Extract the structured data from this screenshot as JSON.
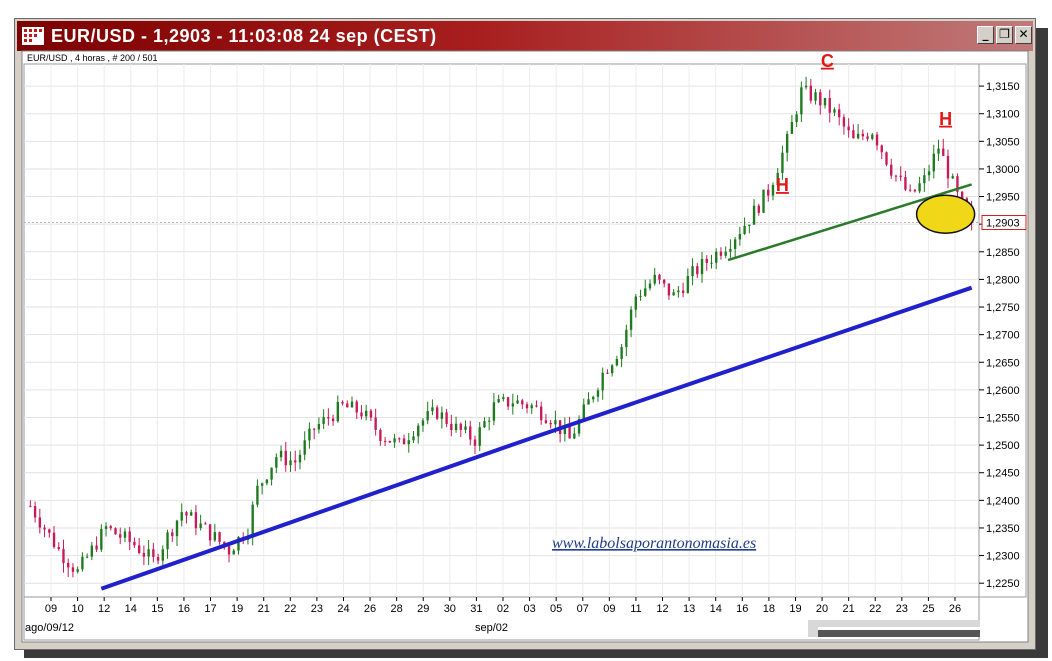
{
  "window": {
    "title": "EUR/USD - 1,2903 - 11:03:08  24 sep (CEST)",
    "buttons": [
      "_",
      "❐",
      "✕"
    ]
  },
  "chart_data": {
    "type": "candlestick",
    "title": "EUR/USD , 4 horas , # 200 / 501",
    "last_price_label": "1,2903",
    "y_ticks": [
      "1,3150",
      "1,3100",
      "1,3050",
      "1,3000",
      "1,2950",
      "1,2900",
      "1,2850",
      "1,2800",
      "1,2750",
      "1,2700",
      "1,2650",
      "1,2600",
      "1,2550",
      "1,2500",
      "1,2450",
      "1,2400",
      "1,2350",
      "1,2300",
      "1,2250"
    ],
    "ylim": [
      1.2225,
      1.319
    ],
    "x_ticks": [
      "09",
      "10",
      "12",
      "14",
      "15",
      "16",
      "17",
      "19",
      "21",
      "22",
      "23",
      "24",
      "26",
      "28",
      "29",
      "30",
      "31",
      "02",
      "03",
      "05",
      "07",
      "09",
      "11",
      "12",
      "13",
      "14",
      "16",
      "18",
      "19",
      "20",
      "21",
      "22",
      "23",
      "25",
      "26"
    ],
    "x_month_labels": [
      "ago/09/12",
      "sep/02"
    ],
    "up_color": "#1e7a1e",
    "down_color": "#c8195a",
    "anchors": [
      [
        0,
        1.239
      ],
      [
        6,
        1.231
      ],
      [
        10,
        1.227
      ],
      [
        16,
        1.235
      ],
      [
        22,
        1.232
      ],
      [
        26,
        1.229
      ],
      [
        32,
        1.238
      ],
      [
        38,
        1.234
      ],
      [
        42,
        1.231
      ],
      [
        46,
        1.235
      ],
      [
        48,
        1.242
      ],
      [
        52,
        1.248
      ],
      [
        56,
        1.247
      ],
      [
        60,
        1.253
      ],
      [
        66,
        1.257
      ],
      [
        70,
        1.256
      ],
      [
        74,
        1.252
      ],
      [
        78,
        1.25
      ],
      [
        82,
        1.254
      ],
      [
        86,
        1.256
      ],
      [
        90,
        1.253
      ],
      [
        94,
        1.251
      ],
      [
        98,
        1.257
      ],
      [
        102,
        1.258
      ],
      [
        106,
        1.257
      ],
      [
        110,
        1.255
      ],
      [
        114,
        1.251
      ],
      [
        117,
        1.256
      ],
      [
        121,
        1.263
      ],
      [
        125,
        1.268
      ],
      [
        128,
        1.277
      ],
      [
        132,
        1.28
      ],
      [
        136,
        1.277
      ],
      [
        140,
        1.281
      ],
      [
        144,
        1.284
      ],
      [
        148,
        1.287
      ],
      [
        152,
        1.291
      ],
      [
        156,
        1.296
      ],
      [
        160,
        1.305
      ],
      [
        163,
        1.314
      ],
      [
        166,
        1.313
      ],
      [
        170,
        1.31
      ],
      [
        174,
        1.305
      ],
      [
        178,
        1.307
      ],
      [
        182,
        1.3
      ],
      [
        186,
        1.295
      ],
      [
        189,
        1.298
      ],
      [
        192,
        1.304
      ],
      [
        196,
        1.295
      ],
      [
        199,
        1.2903
      ]
    ],
    "trendlines": [
      {
        "name": "support-blue",
        "color": "#2020cc",
        "points": [
          [
            15.0,
            1.224
          ],
          [
            105.0,
            1.251
          ],
          [
            199.0,
            1.2785
          ]
        ]
      },
      {
        "name": "neckline-green",
        "color": "#2a7a2a",
        "points": [
          [
            147.5,
            1.2835
          ],
          [
            199.0,
            1.2972
          ]
        ]
      }
    ],
    "annotations": [
      {
        "text": "H",
        "color": "#e01818",
        "at": [
          159.0,
          1.296
        ]
      },
      {
        "text": "C",
        "color": "#e01818",
        "at": [
          168.5,
          1.3185
        ]
      },
      {
        "text": "H",
        "color": "#e01818",
        "at": [
          193.5,
          1.308
        ]
      }
    ],
    "highlight_ellipse": {
      "center": [
        193.5,
        1.2918
      ],
      "fill": "#f0d818"
    },
    "watermark": "www.labolsaporantonomasia.es"
  }
}
